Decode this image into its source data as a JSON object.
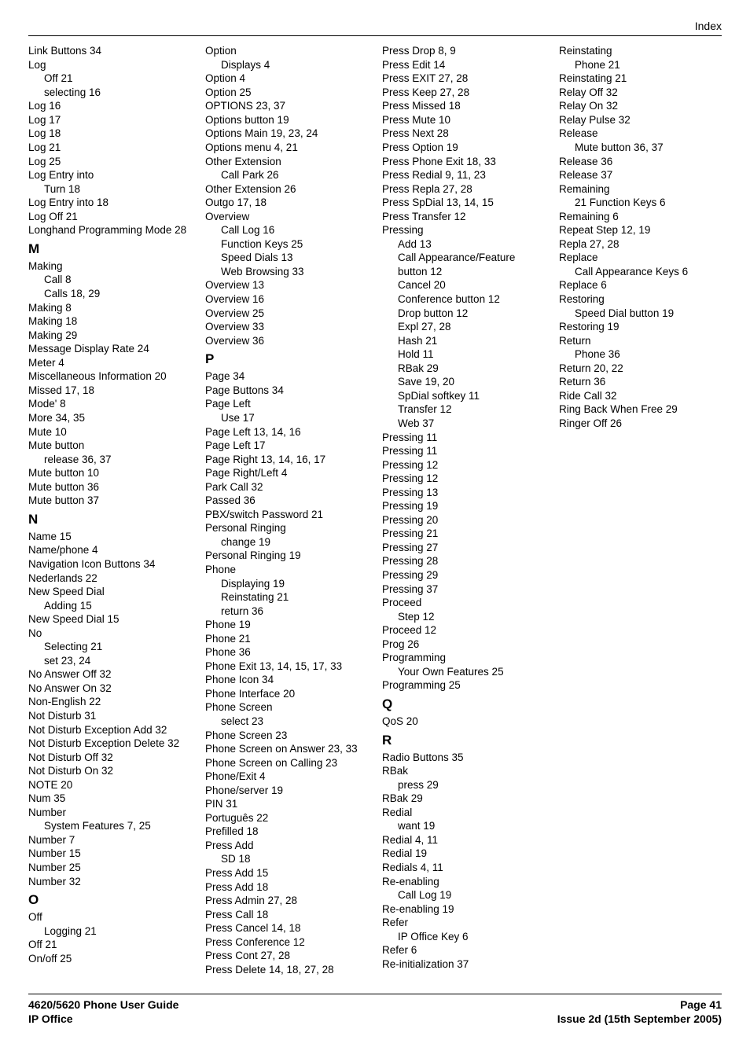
{
  "header": {
    "section": "Index"
  },
  "footer": {
    "guide": "4620/5620 Phone User Guide",
    "product": "IP Office",
    "page": "Page 41",
    "issue": "Issue 2d (15th September 2005)"
  },
  "letters": {
    "M": "M",
    "N": "N",
    "O": "O",
    "P": "P",
    "Q": "Q",
    "R": "R"
  },
  "col1": {
    "e1": {
      "t": "Link Buttons 34"
    },
    "e2": {
      "t": "Log"
    },
    "e2a": {
      "t": "Off 21"
    },
    "e2b": {
      "t": "selecting 16"
    },
    "e3": {
      "t": "Log 16"
    },
    "e4": {
      "t": "Log 17"
    },
    "e5": {
      "t": "Log 18"
    },
    "e6": {
      "t": "Log 21"
    },
    "e7": {
      "t": "Log 25"
    },
    "e8": {
      "t": "Log Entry into"
    },
    "e8a": {
      "t": "Turn 18"
    },
    "e9": {
      "t": "Log Entry into 18"
    },
    "e10": {
      "t": "Log Off 21"
    },
    "e11": {
      "t": "Longhand Programming Mode 28"
    },
    "m1": {
      "t": "Making"
    },
    "m1a": {
      "t": "Call 8"
    },
    "m1b": {
      "t": "Calls 18, 29"
    },
    "m2": {
      "t": "Making 8"
    },
    "m3": {
      "t": "Making 18"
    },
    "m4": {
      "t": "Making 29"
    },
    "m5": {
      "t": "Message Display Rate 24"
    },
    "m6": {
      "t": "Meter 4"
    },
    "m7": {
      "t": "Miscellaneous Information 20"
    },
    "m8": {
      "t": "Missed 17, 18"
    },
    "m9": {
      "t": "Mode' 8"
    },
    "m10": {
      "t": "More 34, 35"
    },
    "m11": {
      "t": "Mute 10"
    },
    "m12": {
      "t": "Mute button"
    },
    "m12a": {
      "t": "release 36, 37"
    },
    "m13": {
      "t": "Mute button 10"
    },
    "m14": {
      "t": "Mute button 36"
    },
    "m15": {
      "t": "Mute button 37"
    },
    "n1": {
      "t": "Name 15"
    },
    "n2": {
      "t": "Name/phone 4"
    },
    "n3": {
      "t": "Navigation Icon Buttons 34"
    },
    "n4": {
      "t": "Nederlands 22"
    },
    "n5": {
      "t": "New Speed Dial"
    },
    "n5a": {
      "t": "Adding 15"
    },
    "n6": {
      "t": "New Speed Dial 15"
    },
    "n7": {
      "t": "No"
    },
    "n7a": {
      "t": "Selecting 21"
    },
    "n7b": {
      "t": "set 23, 24"
    },
    "n8": {
      "t": "No Answer Off 32"
    },
    "n9": {
      "t": "No Answer On 32"
    },
    "n10": {
      "t": "Non-English 22"
    },
    "n11": {
      "t": "Not Disturb 31"
    },
    "n12": {
      "t": "Not Disturb Exception Add 32"
    },
    "n13": {
      "t": "Not Disturb Exception Delete 32"
    },
    "n14": {
      "t": "Not Disturb Off 32"
    },
    "n15": {
      "t": "Not Disturb On 32"
    },
    "n16": {
      "t": "NOTE 20"
    },
    "n17": {
      "t": "Num 35"
    },
    "n18": {
      "t": "Number"
    }
  },
  "col2": {
    "n18a": {
      "t": "System Features 7, 25"
    },
    "n19": {
      "t": "Number 7"
    },
    "n20": {
      "t": "Number 15"
    },
    "n21": {
      "t": "Number 25"
    },
    "n22": {
      "t": "Number 32"
    },
    "o1": {
      "t": "Off"
    },
    "o1a": {
      "t": "Logging 21"
    },
    "o2": {
      "t": "Off 21"
    },
    "o3": {
      "t": "On/off 25"
    },
    "o4": {
      "t": "Option"
    },
    "o4a": {
      "t": "Displays 4"
    },
    "o5": {
      "t": "Option 4"
    },
    "o6": {
      "t": "Option 25"
    },
    "o7": {
      "t": "OPTIONS 23, 37"
    },
    "o8": {
      "t": "Options button 19"
    },
    "o9": {
      "t": "Options Main 19, 23, 24"
    },
    "o10": {
      "t": "Options menu 4, 21"
    },
    "o11": {
      "t": "Other Extension"
    },
    "o11a": {
      "t": "Call Park 26"
    },
    "o12": {
      "t": "Other Extension 26"
    },
    "o13": {
      "t": "Outgo 17, 18"
    },
    "o14": {
      "t": "Overview"
    },
    "o14a": {
      "t": "Call Log 16"
    },
    "o14b": {
      "t": "Function Keys 25"
    },
    "o14c": {
      "t": "Speed Dials 13"
    },
    "o14d": {
      "t": "Web Browsing 33"
    },
    "o15": {
      "t": "Overview 13"
    },
    "o16": {
      "t": "Overview 16"
    },
    "o17": {
      "t": "Overview 25"
    },
    "o18": {
      "t": "Overview 33"
    },
    "o19": {
      "t": "Overview 36"
    },
    "p1": {
      "t": "Page 34"
    },
    "p2": {
      "t": "Page Buttons 34"
    },
    "p3": {
      "t": "Page Left"
    },
    "p3a": {
      "t": "Use 17"
    },
    "p4": {
      "t": "Page Left 13, 14, 16"
    },
    "p5": {
      "t": "Page Left 17"
    },
    "p6": {
      "t": "Page Right 13, 14, 16, 17"
    },
    "p7": {
      "t": "Page Right/Left 4"
    },
    "p8": {
      "t": "Park Call 32"
    },
    "p9": {
      "t": "Passed 36"
    },
    "p10": {
      "t": "PBX/switch Password 21"
    },
    "p11": {
      "t": "Personal Ringing"
    },
    "p11a": {
      "t": "change 19"
    },
    "p12": {
      "t": "Personal Ringing 19"
    },
    "p13": {
      "t": "Phone"
    },
    "p13a": {
      "t": "Displaying 19"
    },
    "p13b": {
      "t": "Reinstating 21"
    },
    "p13c": {
      "t": "return 36"
    },
    "p14": {
      "t": "Phone 19"
    },
    "p15": {
      "t": "Phone 21"
    },
    "p16": {
      "t": "Phone 36"
    },
    "p17": {
      "t": "Phone Exit 13, 14, 15, 17, 33"
    },
    "p18": {
      "t": "Phone Icon 34"
    },
    "p19": {
      "t": "Phone Interface 20"
    },
    "p20": {
      "t": "Phone Screen"
    }
  },
  "col3": {
    "p20a": {
      "t": "select 23"
    },
    "p21": {
      "t": "Phone Screen 23"
    },
    "p22": {
      "t": "Phone Screen on Answer 23, 33"
    },
    "p23": {
      "t": "Phone Screen on Calling 23"
    },
    "p24": {
      "t": "Phone/Exit 4"
    },
    "p25": {
      "t": "Phone/server 19"
    },
    "p26": {
      "t": "PIN 31"
    },
    "p27": {
      "t": "Português 22"
    },
    "p28": {
      "t": "Prefilled 18"
    },
    "p29": {
      "t": "Press Add"
    },
    "p29a": {
      "t": "SD 18"
    },
    "p30": {
      "t": "Press Add 15"
    },
    "p31": {
      "t": "Press Add 18"
    },
    "p32": {
      "t": "Press Admin 27, 28"
    },
    "p33": {
      "t": "Press Call 18"
    },
    "p34": {
      "t": "Press Cancel 14, 18"
    },
    "p35": {
      "t": "Press Conference 12"
    },
    "p36": {
      "t": "Press Cont 27, 28"
    },
    "p37": {
      "t": "Press Delete 14, 18, 27, 28"
    },
    "p38": {
      "t": "Press Drop 8, 9"
    },
    "p39": {
      "t": "Press Edit 14"
    },
    "p40": {
      "t": "Press EXIT 27, 28"
    },
    "p41": {
      "t": "Press Keep 27, 28"
    },
    "p42": {
      "t": "Press Missed 18"
    },
    "p43": {
      "t": "Press Mute 10"
    },
    "p44": {
      "t": "Press Next 28"
    },
    "p45": {
      "t": "Press Option 19"
    },
    "p46": {
      "t": "Press Phone Exit 18, 33"
    },
    "p47": {
      "t": "Press Redial 9, 11, 23"
    },
    "p48": {
      "t": "Press Repla 27, 28"
    },
    "p49": {
      "t": "Press SpDial 13, 14, 15"
    },
    "p50": {
      "t": "Press Transfer 12"
    },
    "p51": {
      "t": "Pressing"
    },
    "p51a": {
      "t": "Add 13"
    },
    "p51b": {
      "t": "Call Appearance/Feature button 12"
    },
    "p51c": {
      "t": "Cancel 20"
    },
    "p51d": {
      "t": "Conference button 12"
    },
    "p51e": {
      "t": "Drop button 12"
    },
    "p51f": {
      "t": "Expl 27, 28"
    },
    "p51g": {
      "t": "Hash 21"
    },
    "p51h": {
      "t": "Hold 11"
    },
    "p51i": {
      "t": "RBak 29"
    },
    "p51j": {
      "t": "Save 19, 20"
    },
    "p51k": {
      "t": "SpDial softkey 11"
    },
    "p51l": {
      "t": "Transfer 12"
    },
    "p51m": {
      "t": "Web 37"
    },
    "p52": {
      "t": "Pressing 11"
    },
    "p53": {
      "t": "Pressing 11"
    },
    "p54": {
      "t": "Pressing 12"
    },
    "p55": {
      "t": "Pressing 12"
    },
    "p56": {
      "t": "Pressing 13"
    },
    "p57": {
      "t": "Pressing 19"
    },
    "p58": {
      "t": "Pressing 20"
    },
    "p59": {
      "t": "Pressing 21"
    },
    "p60": {
      "t": "Pressing 27"
    }
  },
  "col4": {
    "p61": {
      "t": "Pressing 28"
    },
    "p62": {
      "t": "Pressing 29"
    },
    "p63": {
      "t": "Pressing 37"
    },
    "p64": {
      "t": "Proceed"
    },
    "p64a": {
      "t": "Step 12"
    },
    "p65": {
      "t": "Proceed 12"
    },
    "p66": {
      "t": "Prog 26"
    },
    "p67": {
      "t": "Programming"
    },
    "p67a": {
      "t": "Your Own Features 25"
    },
    "p68": {
      "t": "Programming 25"
    },
    "q1": {
      "t": "QoS 20"
    },
    "r1": {
      "t": "Radio Buttons 35"
    },
    "r2": {
      "t": "RBak"
    },
    "r2a": {
      "t": "press 29"
    },
    "r3": {
      "t": "RBak 29"
    },
    "r4": {
      "t": "Redial"
    },
    "r4a": {
      "t": "want 19"
    },
    "r5": {
      "t": "Redial 4, 11"
    },
    "r6": {
      "t": "Redial 19"
    },
    "r7": {
      "t": "Redials 4, 11"
    },
    "r8": {
      "t": "Re-enabling"
    },
    "r8a": {
      "t": "Call Log 19"
    },
    "r9": {
      "t": "Re-enabling 19"
    },
    "r10": {
      "t": "Refer"
    },
    "r10a": {
      "t": "IP Office Key 6"
    },
    "r11": {
      "t": "Refer 6"
    },
    "r12": {
      "t": "Re-initialization 37"
    },
    "r13": {
      "t": "Reinstating"
    },
    "r13a": {
      "t": "Phone 21"
    },
    "r14": {
      "t": "Reinstating 21"
    },
    "r15": {
      "t": "Relay Off 32"
    },
    "r16": {
      "t": "Relay On 32"
    },
    "r17": {
      "t": "Relay Pulse 32"
    },
    "r18": {
      "t": "Release"
    },
    "r18a": {
      "t": "Mute button 36, 37"
    },
    "r19": {
      "t": "Release 36"
    },
    "r20": {
      "t": "Release 37"
    },
    "r21": {
      "t": "Remaining"
    },
    "r21a": {
      "t": "21 Function Keys 6"
    },
    "r22": {
      "t": "Remaining 6"
    },
    "r23": {
      "t": "Repeat Step 12, 19"
    },
    "r24": {
      "t": "Repla 27, 28"
    },
    "r25": {
      "t": "Replace"
    },
    "r25a": {
      "t": "Call Appearance Keys 6"
    },
    "r26": {
      "t": "Replace 6"
    },
    "r27": {
      "t": "Restoring"
    },
    "r27a": {
      "t": "Speed Dial button 19"
    },
    "r28": {
      "t": "Restoring 19"
    },
    "r29": {
      "t": "Return"
    },
    "r29a": {
      "t": "Phone 36"
    },
    "r30": {
      "t": "Return 20, 22"
    },
    "r31": {
      "t": "Return 36"
    },
    "r32": {
      "t": "Ride Call 32"
    },
    "r33": {
      "t": "Ring Back When Free 29"
    },
    "r34": {
      "t": "Ringer Off 26"
    }
  }
}
